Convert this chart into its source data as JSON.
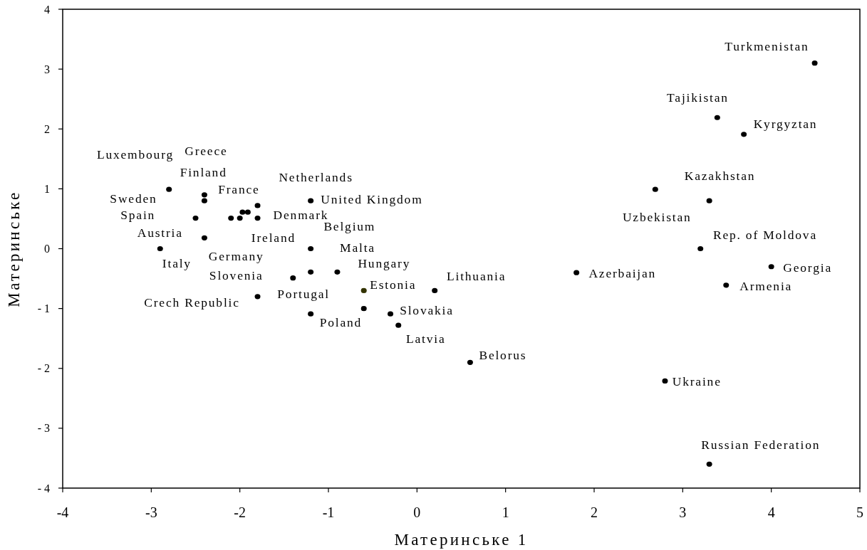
{
  "chart_data": {
    "type": "scatter",
    "xlabel": "Материнське 1",
    "ylabel": "Материнське",
    "x": [
      -2.8,
      -2.4,
      -2.4,
      -1.8,
      -1.97,
      -1.91,
      -2.5,
      -2.1,
      -2.0,
      -1.8,
      -2.4,
      -2.9,
      -1.2,
      -1.2,
      -1.2,
      -0.9,
      -1.4,
      -1.8,
      -1.2,
      -0.6,
      -0.6,
      -0.3,
      -0.21,
      0.2,
      0.6,
      1.8,
      2.69,
      3.3,
      3.2,
      3.39,
      3.69,
      4.49,
      4.0,
      3.49,
      2.8,
      3.3
    ],
    "values": [
      0.99,
      0.9,
      0.8,
      0.72,
      0.61,
      0.61,
      0.51,
      0.51,
      0.51,
      0.51,
      0.18,
      0.0,
      0.8,
      0.0,
      -0.39,
      -0.39,
      -0.49,
      -0.8,
      -1.09,
      -0.7,
      -1.0,
      -1.09,
      -1.28,
      -0.7,
      -1.9,
      -0.4,
      0.99,
      0.8,
      0.0,
      2.19,
      1.91,
      3.1,
      -0.3,
      -0.61,
      -2.21,
      -3.6
    ],
    "colors": [
      "#000000",
      "#000000",
      "#000000",
      "#000000",
      "#000000",
      "#000000",
      "#000000",
      "#000000",
      "#000000",
      "#000000",
      "#000000",
      "#000000",
      "#000000",
      "#000000",
      "#000000",
      "#000000",
      "#000000",
      "#000000",
      "#000000",
      "#333300",
      "#000000",
      "#000000",
      "#000000",
      "#000000",
      "#000000",
      "#000000",
      "#000000",
      "#000000",
      "#000000",
      "#000000",
      "#000000",
      "#000000",
      "#000000",
      "#000000",
      "#000000",
      "#000000"
    ],
    "marker": "circle",
    "xlim": [
      -4,
      5
    ],
    "ylim": [
      -4,
      4
    ],
    "xticks": [
      -4,
      -3,
      -2,
      -1,
      0,
      1,
      2,
      3,
      4,
      5
    ],
    "yticks": [
      -4,
      -3,
      -2,
      -1,
      0,
      1,
      2,
      3,
      4
    ],
    "annotations": [
      "Luxembourg",
      "Greece",
      "Finland",
      "Netherlands",
      "France",
      "Sweden",
      "United Kingdom",
      "Spain",
      "Denmark",
      "Belgium",
      "Austria",
      "Ireland",
      "Malta",
      "Germany",
      "Italy",
      "Slovenia",
      "Portugal",
      "Crech Republic",
      "Poland",
      "Hungary",
      "Lithuania",
      "Estonia",
      "Slovakia",
      "Latvia",
      "Belorus",
      "Turkmenistan",
      "Tajikistan",
      "Kyrgyztan",
      "Kazakhstan",
      "Uzbekistan",
      "Rep. of Moldova",
      "Azerbaijan",
      "Georgia",
      "Armenia",
      "Ukraine",
      "Russian Federation"
    ]
  }
}
